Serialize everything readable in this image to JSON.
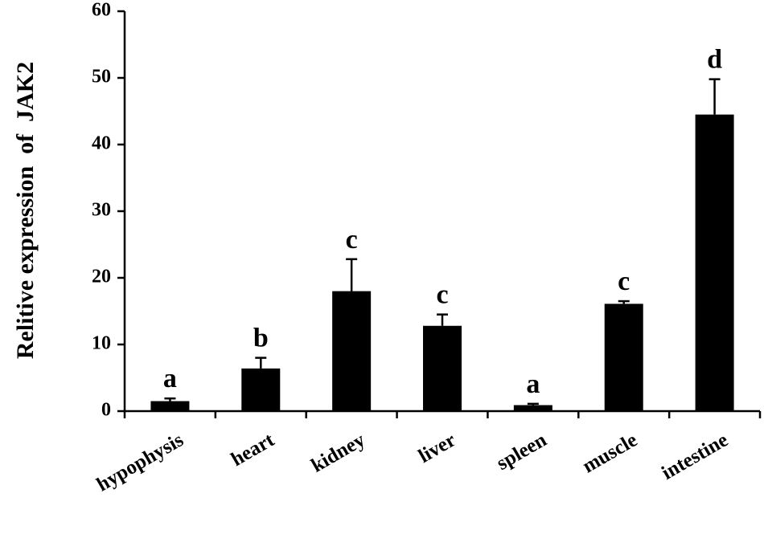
{
  "chart_data": {
    "type": "bar",
    "title": "",
    "xlabel": "",
    "ylabel": "Relitive expression  of  JAK2",
    "ylim": [
      0,
      60
    ],
    "yticks": [
      0,
      10,
      20,
      30,
      40,
      50,
      60
    ],
    "grid": false,
    "legend": "none",
    "bar_color": "#000000",
    "categories": [
      "hypophysis",
      "heart",
      "kidney",
      "liver",
      "spleen",
      "muscle",
      "intestine"
    ],
    "values": [
      1.5,
      6.4,
      18.0,
      12.8,
      0.9,
      16.1,
      44.5
    ],
    "error_upper": [
      0.4,
      1.6,
      4.8,
      1.7,
      0.2,
      0.4,
      5.3
    ],
    "significance_labels": [
      "a",
      "b",
      "c",
      "c",
      "a",
      "c",
      "d"
    ]
  }
}
